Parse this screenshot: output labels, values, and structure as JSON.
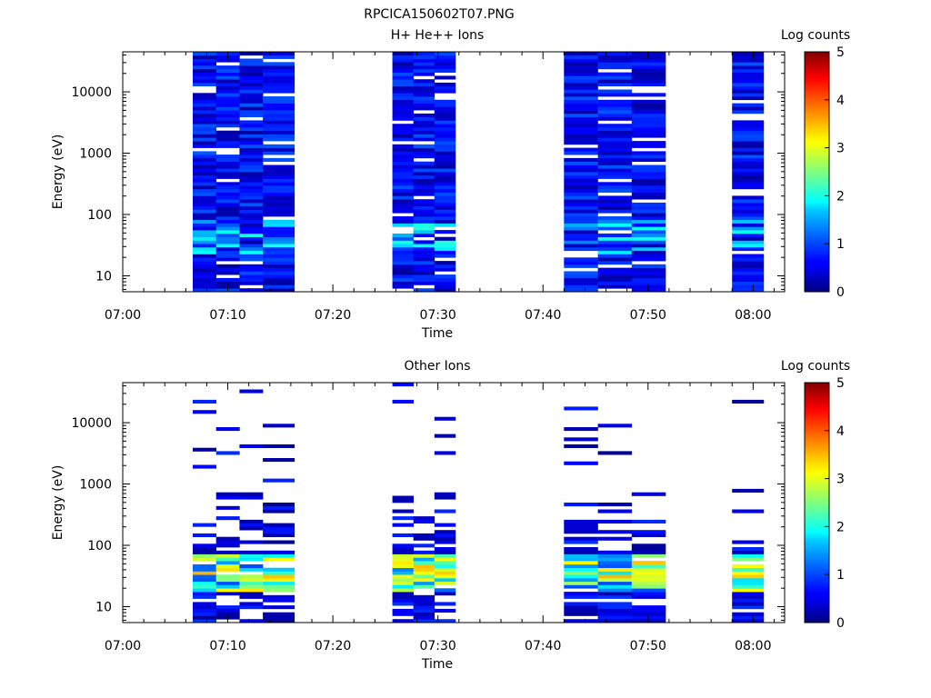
{
  "title": "RPCICA150602T07.PNG",
  "chart_data": [
    {
      "type": "heatmap",
      "title": "H+ He++ Ions",
      "xlabel": "Time",
      "ylabel": "Energy (eV)",
      "yscale": "log",
      "ylim": [
        5.5,
        45000
      ],
      "xlim": [
        "07:00",
        "08:03"
      ],
      "x_ticks": [
        "07:00",
        "07:10",
        "07:20",
        "07:30",
        "07:40",
        "07:50",
        "08:00"
      ],
      "y_ticks": [
        "10",
        "100",
        "1000",
        "10000"
      ],
      "colorbar": {
        "label": "Log counts",
        "range": [
          0,
          5
        ],
        "ticks": [
          "0",
          "1",
          "2",
          "3",
          "4",
          "5"
        ]
      },
      "sweeps": [
        {
          "t0": "07:06:40",
          "t1": "07:13:20",
          "mode": "full"
        },
        {
          "t0": "07:13:20",
          "t1": "07:16:20",
          "mode": "full"
        },
        {
          "t0": "07:25:40",
          "t1": "07:31:40",
          "mode": "full"
        },
        {
          "t0": "07:42:00",
          "t1": "07:51:40",
          "mode": "full"
        },
        {
          "t0": "07:58:00",
          "t1": "08:01:00",
          "mode": "full"
        }
      ]
    },
    {
      "type": "heatmap",
      "title": "Other Ions",
      "xlabel": "Time",
      "ylabel": "Energy (eV)",
      "yscale": "log",
      "ylim": [
        5.5,
        45000
      ],
      "xlim": [
        "07:00",
        "08:03"
      ],
      "x_ticks": [
        "07:00",
        "07:10",
        "07:20",
        "07:30",
        "07:40",
        "07:50",
        "08:00"
      ],
      "y_ticks": [
        "10",
        "100",
        "1000",
        "10000"
      ],
      "colorbar": {
        "label": "Log counts",
        "range": [
          0,
          5
        ],
        "ticks": [
          "0",
          "1",
          "2",
          "3",
          "4",
          "5"
        ]
      },
      "sweeps": [
        {
          "t0": "07:06:40",
          "t1": "07:13:20",
          "mode": "sparse"
        },
        {
          "t0": "07:13:20",
          "t1": "07:16:20",
          "mode": "sparse"
        },
        {
          "t0": "07:25:40",
          "t1": "07:31:40",
          "mode": "sparse"
        },
        {
          "t0": "07:42:00",
          "t1": "07:51:40",
          "mode": "sparse"
        },
        {
          "t0": "07:58:00",
          "t1": "08:01:00",
          "mode": "sparse"
        }
      ]
    }
  ]
}
